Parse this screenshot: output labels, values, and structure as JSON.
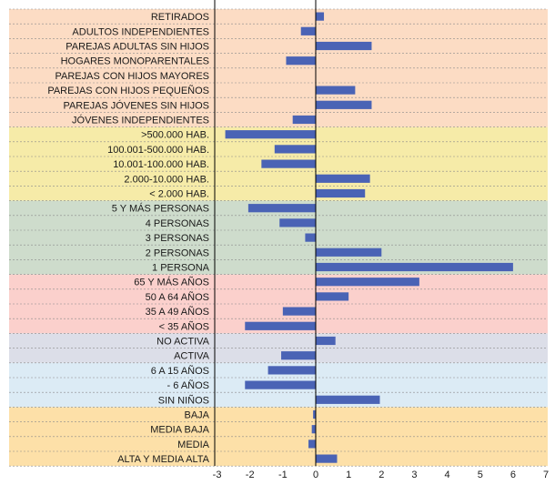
{
  "chart_data": {
    "type": "bar",
    "orientation": "horizontal",
    "categories": [
      "RETIRADOS",
      "ADULTOS INDEPENDIENTES",
      "PAREJAS ADULTAS SIN HIJOS",
      "HOGARES MONOPARENTALES",
      "PAREJAS CON HIJOS MAYORES",
      "PAREJAS CON HIJOS PEQUEÑOS",
      "PAREJAS JÓVENES SIN HIJOS",
      "JÓVENES INDEPENDIENTES",
      ">500.000 HAB.",
      "100.001-500.000 HAB.",
      "10.001-100.000 HAB.",
      "2.000-10.000 HAB.",
      "< 2.000 HAB.",
      "5 Y MÁS PERSONAS",
      "4 PERSONAS",
      "3 PERSONAS",
      "2 PERSONAS",
      "1 PERSONA",
      "65 Y MÁS AÑOS",
      "50 A 64 AÑOS",
      "35 A 49 AÑOS",
      "< 35 AÑOS",
      "NO ACTIVA",
      "ACTIVA",
      "6 A 15 AÑOS",
      "- 6 AÑOS",
      "SIN NIÑOS",
      "BAJA",
      "MEDIA BAJA",
      "MEDIA",
      "ALTA Y MEDIA ALTA"
    ],
    "values": [
      0.25,
      -0.45,
      1.7,
      -0.9,
      0.0,
      1.2,
      1.7,
      -0.7,
      -2.75,
      -1.25,
      -1.65,
      1.65,
      1.5,
      -2.05,
      -1.1,
      -0.32,
      2.0,
      6.0,
      3.15,
      1.0,
      -1.0,
      -2.15,
      0.6,
      -1.05,
      -1.45,
      -2.15,
      1.95,
      -0.08,
      -0.12,
      -0.22,
      0.65
    ],
    "groups": [
      {
        "start": 0,
        "end": 7,
        "color": "#fcdcc4"
      },
      {
        "start": 8,
        "end": 12,
        "color": "#f6eba8"
      },
      {
        "start": 13,
        "end": 17,
        "color": "#cedccc"
      },
      {
        "start": 18,
        "end": 21,
        "color": "#fbd0cc"
      },
      {
        "start": 22,
        "end": 23,
        "color": "#dcdee8"
      },
      {
        "start": 24,
        "end": 26,
        "color": "#dcebf5"
      },
      {
        "start": 27,
        "end": 30,
        "color": "#fde0a8"
      }
    ],
    "xlim": [
      -3,
      7
    ],
    "xticks": [
      "-3",
      "-2",
      "-1",
      "0",
      "1",
      "2",
      "3",
      "4",
      "5",
      "6",
      "7"
    ],
    "grid": "horizontal dashed",
    "bar_color": "#4a63b5",
    "title": "",
    "xlabel": "",
    "ylabel": ""
  }
}
